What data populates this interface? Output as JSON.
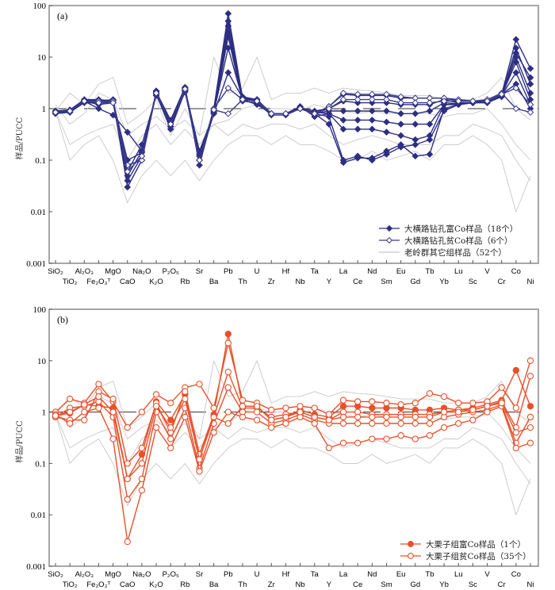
{
  "chart_data": [
    {
      "type": "line",
      "panel_label": "(a)",
      "ylabel": "样品/PUCC",
      "xlabel": "",
      "yscale": "log",
      "ylim": [
        0.001,
        100
      ],
      "yticks": [
        "100",
        "10",
        "1",
        "0.1",
        "0.01",
        "0.001"
      ],
      "yticks_values": [
        100,
        10,
        1,
        0.1,
        0.01,
        0.001
      ],
      "reference_line": 1,
      "categories": [
        "SiO₂",
        "TiO₂",
        "Al₂O₃",
        "Fe₂O₃ᵀ",
        "MgO",
        "CaO",
        "Na₂O",
        "K₂O",
        "P₂O₅",
        "Rb",
        "Sr",
        "Ba",
        "Pb",
        "Th",
        "U",
        "Zr",
        "Hf",
        "Nb",
        "Ta",
        "Y",
        "La",
        "Ce",
        "Nd",
        "Sm",
        "Eu",
        "Gd",
        "Tb",
        "Yb",
        "Lu",
        "Sc",
        "V",
        "Cr",
        "Co",
        "Ni"
      ],
      "legend_position": "bottom-right",
      "legend": [
        {
          "label": "大横路钻孔富Co样品（18个）",
          "marker": "filled-diamond",
          "color": "#2e2e82"
        },
        {
          "label": "大横路钻孔贫Co样品（6个）",
          "marker": "open-diamond",
          "color": "#3a3a8c"
        },
        {
          "label": "老岭群其它组样品（52个）",
          "marker": "none",
          "color": "#c8c8c8"
        }
      ],
      "series_groups": [
        {
          "name": "大横路钻孔富Co样品",
          "count": 18,
          "color": "#2e2e82",
          "marker": "filled-diamond",
          "series": [
            [
              0.85,
              0.9,
              1.4,
              1.4,
              1.5,
              0.03,
              0.1,
              2.2,
              0.5,
              2.5,
              0.1,
              1.0,
              70,
              1.6,
              1.5,
              0.8,
              0.8,
              1.0,
              0.8,
              1.1,
              1.9,
              1.8,
              1.8,
              1.8,
              1.6,
              1.6,
              1.6,
              1.6,
              1.4,
              1.4,
              1.4,
              1.9,
              22,
              6
            ],
            [
              0.9,
              0.95,
              1.5,
              1.5,
              1.4,
              0.04,
              0.12,
              2.0,
              0.45,
              2.3,
              0.12,
              0.9,
              40,
              1.5,
              1.4,
              0.8,
              0.8,
              1.05,
              0.9,
              1.0,
              1.4,
              1.3,
              1.3,
              1.3,
              1.2,
              1.2,
              1.2,
              1.5,
              1.3,
              1.3,
              1.4,
              1.8,
              15,
              3
            ],
            [
              0.85,
              0.9,
              1.4,
              1.2,
              1.3,
              0.05,
              0.15,
              1.9,
              0.4,
              2.2,
              0.1,
              0.8,
              25,
              1.4,
              1.3,
              0.75,
              0.75,
              1.0,
              0.8,
              0.9,
              0.9,
              0.9,
              0.9,
              0.9,
              0.8,
              0.8,
              0.9,
              1.3,
              1.25,
              1.3,
              1.35,
              1.8,
              8,
              1.5
            ],
            [
              0.85,
              0.85,
              1.35,
              1.3,
              1.3,
              0.06,
              0.2,
              1.8,
              0.5,
              2.1,
              0.13,
              0.85,
              15,
              1.5,
              1.2,
              0.8,
              0.8,
              1.1,
              0.7,
              0.8,
              0.6,
              0.6,
              0.6,
              0.55,
              0.5,
              0.5,
              0.5,
              1.2,
              1.2,
              1.3,
              1.3,
              1.8,
              5,
              1.2
            ],
            [
              0.9,
              0.9,
              1.4,
              1.0,
              0.75,
              0.35,
              0.15,
              2.0,
              0.55,
              2.4,
              0.15,
              0.8,
              5,
              1.6,
              1.4,
              0.8,
              0.8,
              1.0,
              0.85,
              0.8,
              0.4,
              0.4,
              0.4,
              0.35,
              0.3,
              0.25,
              0.3,
              1.2,
              1.25,
              1.3,
              1.4,
              1.9,
              3,
              1.0
            ],
            [
              0.8,
              0.85,
              1.3,
              1.3,
              1.4,
              0.1,
              0.14,
              2.1,
              0.6,
              2.6,
              0.08,
              0.9,
              30,
              1.7,
              1.5,
              0.8,
              0.8,
              1.0,
              0.8,
              0.5,
              0.09,
              0.11,
              0.11,
              0.15,
              0.2,
              0.12,
              0.13,
              1.0,
              1.2,
              1.3,
              1.3,
              1.7,
              10,
              2
            ],
            [
              0.85,
              0.9,
              1.45,
              1.45,
              1.45,
              0.08,
              0.1,
              2.2,
              0.45,
              2.5,
              0.1,
              0.9,
              50,
              1.6,
              1.5,
              0.8,
              0.8,
              1.05,
              0.8,
              0.7,
              0.1,
              0.12,
              0.1,
              0.13,
              0.18,
              0.2,
              0.25,
              0.9,
              1.2,
              1.3,
              1.4,
              1.8,
              12,
              4
            ]
          ]
        },
        {
          "name": "大横路钻孔贫Co样品",
          "count": 6,
          "color": "#3a3a8c",
          "marker": "open-diamond",
          "series": [
            [
              0.85,
              0.9,
              1.4,
              1.4,
              1.4,
              0.08,
              0.1,
              2.0,
              0.5,
              2.3,
              0.1,
              1.0,
              2.5,
              1.5,
              1.4,
              0.8,
              0.8,
              1.0,
              0.8,
              1.1,
              2.0,
              1.9,
              1.9,
              1.9,
              1.7,
              1.6,
              1.6,
              1.6,
              1.5,
              1.4,
              1.5,
              2.0,
              1.0,
              0.85
            ],
            [
              0.85,
              0.9,
              1.4,
              1.3,
              1.3,
              0.06,
              0.12,
              2.0,
              0.5,
              2.4,
              0.1,
              0.95,
              0.8,
              1.5,
              1.4,
              0.8,
              0.8,
              1.0,
              0.8,
              1.0,
              1.5,
              1.5,
              1.5,
              1.5,
              1.3,
              1.3,
              1.3,
              1.4,
              1.4,
              1.4,
              1.4,
              1.9,
              2.5,
              1.2
            ]
          ]
        },
        {
          "name": "老岭群其它组样品",
          "count": 52,
          "color": "#c8c8c8",
          "marker": "none",
          "series": [
            [
              0.9,
              2.0,
              1.2,
              3.0,
              4.0,
              0.5,
              0.8,
              1.5,
              0.3,
              1.0,
              0.3,
              10,
              2.0,
              2.5,
              10,
              1.5,
              2.0,
              2.0,
              2.5,
              2.0,
              2.5,
              2.3,
              2.2,
              2.0,
              1.8,
              1.8,
              1.8,
              1.5,
              1.5,
              1.5,
              2.0,
              4.0,
              1.0,
              0.6
            ],
            [
              0.9,
              0.2,
              0.3,
              0.4,
              0.5,
              0.1,
              0.3,
              0.5,
              0.2,
              0.4,
              0.2,
              0.5,
              0.3,
              0.5,
              0.4,
              0.5,
              0.5,
              0.4,
              0.5,
              0.3,
              0.2,
              0.25,
              0.3,
              0.25,
              0.2,
              0.2,
              0.2,
              0.3,
              0.3,
              0.5,
              0.4,
              0.3,
              0.1,
              0.04
            ],
            [
              0.9,
              0.1,
              0.2,
              0.3,
              0.1,
              0.015,
              0.05,
              0.1,
              0.05,
              0.1,
              0.04,
              0.1,
              0.2,
              0.3,
              0.3,
              0.2,
              0.3,
              0.2,
              0.2,
              0.15,
              0.1,
              0.1,
              0.15,
              0.1,
              0.12,
              0.15,
              0.1,
              0.2,
              0.2,
              0.3,
              0.2,
              0.1,
              0.01,
              0.05
            ],
            [
              1.2,
              0.5,
              0.8,
              2.0,
              1.5,
              0.3,
              0.5,
              0.7,
              0.4,
              0.6,
              0.3,
              0.5,
              0.6,
              1.0,
              1.2,
              1.0,
              1.0,
              0.9,
              1.2,
              1.0,
              0.9,
              0.8,
              0.9,
              0.8,
              0.8,
              0.8,
              0.8,
              0.7,
              0.8,
              0.8,
              1.0,
              0.5,
              0.2,
              0.1
            ]
          ]
        }
      ]
    },
    {
      "type": "line",
      "panel_label": "(b)",
      "ylabel": "样品/PUCC",
      "xlabel": "",
      "yscale": "log",
      "ylim": [
        0.001,
        100
      ],
      "yticks": [
        "100",
        "10",
        "1",
        "0.1",
        "0.01",
        "0.001"
      ],
      "yticks_values": [
        100,
        10,
        1,
        0.1,
        0.01,
        0.001
      ],
      "reference_line": 1,
      "categories": [
        "SiO₂",
        "TiO₂",
        "Al₂O₃",
        "Fe₂O₃ᵀ",
        "MgO",
        "CaO",
        "Na₂O",
        "K₂O",
        "P₂O₅",
        "Rb",
        "Sr",
        "Ba",
        "Pb",
        "Th",
        "U",
        "Zr",
        "Hf",
        "Nb",
        "Ta",
        "Y",
        "La",
        "Ce",
        "Nd",
        "Sm",
        "Eu",
        "Gd",
        "Tb",
        "Yb",
        "Lu",
        "Sc",
        "V",
        "Cr",
        "Co",
        "Ni"
      ],
      "legend_position": "bottom-right",
      "legend": [
        {
          "label": "大栗子组富Co样品（1个）",
          "marker": "filled-circle",
          "color": "#e8502a"
        },
        {
          "label": "大栗子组贫Co样品（35个）",
          "marker": "open-circle",
          "color": "#e8502a"
        }
      ],
      "series_groups": [
        {
          "name": "大栗子组富Co样品",
          "count": 1,
          "color": "#e8502a",
          "marker": "filled-circle",
          "series": [
            [
              0.85,
              0.95,
              1.4,
              1.3,
              1.2,
              0.05,
              0.15,
              1.6,
              0.7,
              2.2,
              0.15,
              0.9,
              33,
              1.3,
              1.3,
              0.7,
              0.8,
              1.1,
              0.9,
              0.8,
              1.3,
              1.3,
              1.2,
              1.2,
              1.2,
              1.1,
              1.1,
              1.2,
              1.1,
              1.2,
              1.4,
              1.7,
              6.5,
              1.3
            ]
          ]
        },
        {
          "name": "大栗子组贫Co样品",
          "count": 35,
          "color": "#e8502a",
          "marker": "open-circle",
          "series": [
            [
              1.0,
              1.8,
              1.5,
              3.5,
              1.6,
              0.5,
              1.0,
              2.2,
              1.5,
              3.0,
              3.5,
              1.2,
              22,
              1.7,
              1.5,
              1.1,
              1.2,
              1.3,
              1.2,
              0.9,
              1.7,
              1.6,
              1.6,
              1.5,
              1.4,
              1.5,
              2.3,
              2.0,
              1.5,
              1.5,
              1.6,
              3.0,
              1.2,
              10
            ],
            [
              0.8,
              0.7,
              0.7,
              2.5,
              1.8,
              0.1,
              0.2,
              1.5,
              0.4,
              2.5,
              0.15,
              0.8,
              6,
              1.2,
              1.2,
              0.8,
              0.9,
              1.0,
              0.8,
              0.7,
              1.0,
              1.0,
              0.9,
              0.9,
              0.9,
              0.9,
              0.9,
              1.0,
              1.1,
              1.1,
              1.3,
              1.6,
              0.5,
              5
            ],
            [
              0.8,
              1.2,
              1.3,
              1.6,
              0.8,
              0.02,
              0.05,
              1.0,
              0.3,
              1.2,
              0.08,
              0.6,
              3,
              1.0,
              1.0,
              0.6,
              0.7,
              0.9,
              0.7,
              0.6,
              0.6,
              0.6,
              0.6,
              0.6,
              0.6,
              0.6,
              0.6,
              0.8,
              0.9,
              1.0,
              1.1,
              1.4,
              0.25,
              0.8
            ],
            [
              0.9,
              0.6,
              1.0,
              1.2,
              0.3,
              0.003,
              0.03,
              0.5,
              0.2,
              0.8,
              0.07,
              0.4,
              1.0,
              0.8,
              0.7,
              0.5,
              0.6,
              0.8,
              0.6,
              0.2,
              0.25,
              0.25,
              0.3,
              0.3,
              0.35,
              0.3,
              0.35,
              0.5,
              0.6,
              0.7,
              1.0,
              1.3,
              0.2,
              0.25
            ],
            [
              0.85,
              1.0,
              1.4,
              2.0,
              1.0,
              0.05,
              0.1,
              1.3,
              0.5,
              1.8,
              0.12,
              0.8,
              0.6,
              1.3,
              1.3,
              0.7,
              0.8,
              1.0,
              0.8,
              0.7,
              0.8,
              0.8,
              0.8,
              0.8,
              0.8,
              0.8,
              0.8,
              1.0,
              1.0,
              1.1,
              1.3,
              1.5,
              0.4,
              0.5
            ]
          ]
        },
        {
          "name": "老岭群其它组样品",
          "count": 52,
          "color": "#c8c8c8",
          "marker": "none",
          "series": [
            [
              0.9,
              2.0,
              1.2,
              3.0,
              4.0,
              0.5,
              0.8,
              1.5,
              0.3,
              1.0,
              0.3,
              10,
              2.0,
              2.5,
              10,
              1.5,
              2.0,
              2.0,
              2.5,
              2.0,
              2.5,
              2.3,
              2.2,
              2.0,
              1.8,
              1.8,
              1.8,
              1.5,
              1.5,
              1.5,
              2.0,
              4.0,
              1.0,
              0.6
            ],
            [
              0.9,
              0.2,
              0.3,
              0.4,
              0.5,
              0.1,
              0.3,
              0.5,
              0.2,
              0.4,
              0.2,
              0.5,
              0.3,
              0.5,
              0.4,
              0.5,
              0.5,
              0.4,
              0.5,
              0.3,
              0.2,
              0.25,
              0.3,
              0.25,
              0.2,
              0.2,
              0.2,
              0.3,
              0.3,
              0.5,
              0.4,
              0.3,
              0.1,
              0.04
            ],
            [
              0.9,
              0.1,
              0.2,
              0.3,
              0.1,
              0.015,
              0.05,
              0.1,
              0.05,
              0.1,
              0.04,
              0.1,
              0.2,
              0.3,
              0.3,
              0.2,
              0.3,
              0.2,
              0.2,
              0.15,
              0.1,
              0.1,
              0.15,
              0.1,
              0.12,
              0.15,
              0.1,
              0.2,
              0.2,
              0.3,
              0.2,
              0.1,
              0.01,
              0.05
            ],
            [
              1.2,
              0.5,
              0.8,
              2.0,
              1.5,
              0.3,
              0.5,
              0.7,
              0.4,
              0.6,
              0.3,
              0.5,
              0.6,
              1.0,
              1.2,
              1.0,
              1.0,
              0.9,
              1.2,
              1.0,
              0.9,
              0.8,
              0.9,
              0.8,
              0.8,
              0.8,
              0.8,
              0.7,
              0.8,
              0.8,
              1.0,
              0.5,
              0.2,
              0.1
            ]
          ]
        }
      ]
    }
  ]
}
